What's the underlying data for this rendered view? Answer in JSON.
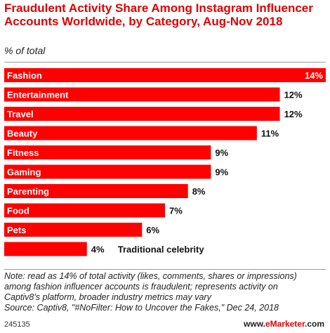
{
  "header": {
    "title": "Fraudulent Activity Share Among Instagram Influencer Accounts Worldwide, by Category, Aug-Nov 2018",
    "subtitle": "% of total"
  },
  "chart_data": {
    "type": "bar",
    "orientation": "horizontal",
    "categories": [
      "Fashion",
      "Entertainment",
      "Travel",
      "Beauty",
      "Fitness",
      "Gaming",
      "Parenting",
      "Food",
      "Pets",
      "Traditional celebrity"
    ],
    "values": [
      14,
      12,
      12,
      11,
      9,
      9,
      8,
      7,
      6,
      4
    ],
    "value_labels": [
      "14%",
      "12%",
      "12%",
      "11%",
      "9%",
      "9%",
      "8%",
      "7%",
      "6%",
      "4%"
    ],
    "unit": "%",
    "xlim": [
      0,
      14
    ],
    "bar_color": "#ff0000",
    "label_color_inside": "#ffffff",
    "grid": false,
    "legend": "none"
  },
  "footer": {
    "note_lines": [
      "Note: read as 14% of total activity (likes, comments, shares or impressions)",
      "among fashion influencer accounts is fraudulent; represents activity on",
      "Captiv8's platform, broader industry metrics may vary",
      "Source: Captiv8, \"#NoFilter: How to Uncover the Fakes,\" Dec 24, 2018"
    ],
    "chart_id": "245135",
    "logo_prefix": "www.",
    "logo_brand": "eMarketer",
    "logo_suffix": ".com"
  }
}
